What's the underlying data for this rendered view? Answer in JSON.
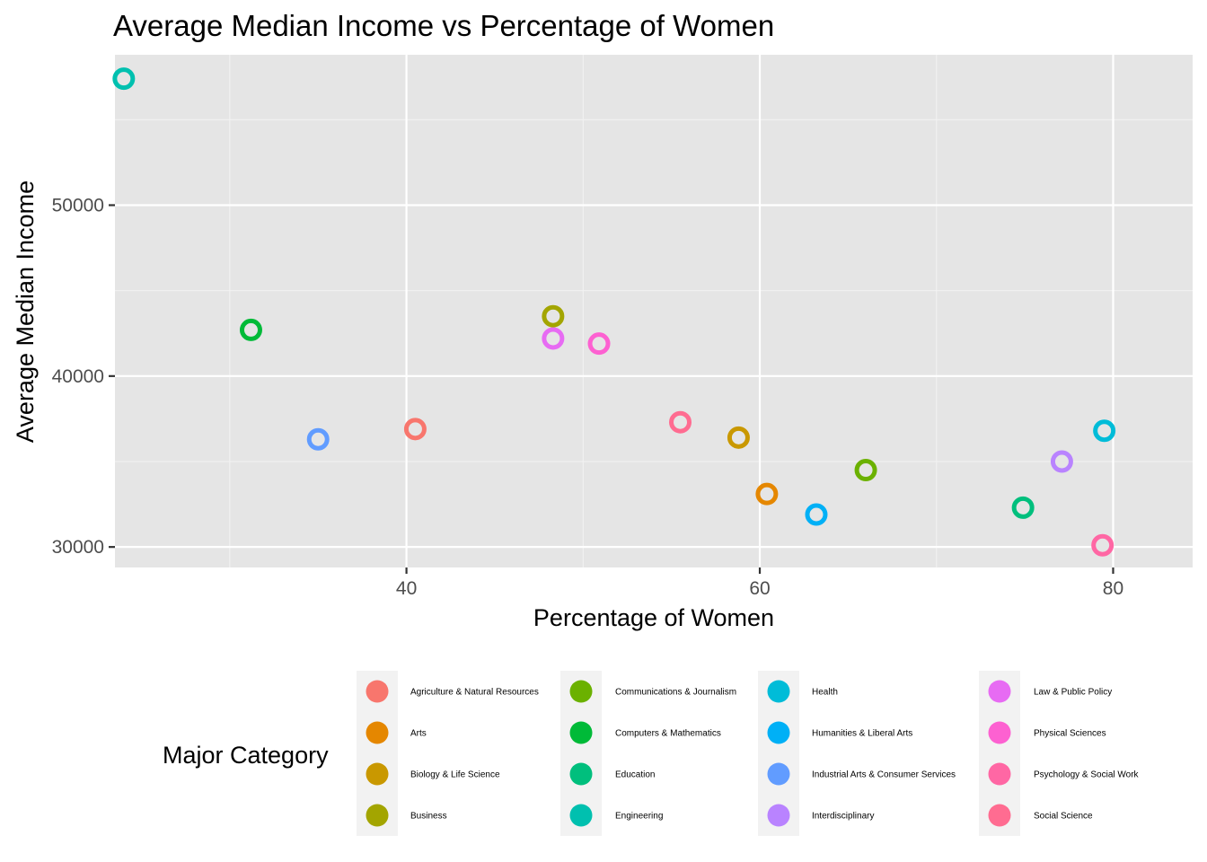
{
  "chart_data": {
    "type": "scatter",
    "title": "Average Median Income vs Percentage of Women",
    "xlabel": "Percentage of Women",
    "ylabel": "Average Median Income",
    "xlim": [
      23.5,
      84.5
    ],
    "ylim": [
      28800,
      58800
    ],
    "x_ticks": [
      {
        "value": 40,
        "label": "40"
      },
      {
        "value": 60,
        "label": "60"
      },
      {
        "value": 80,
        "label": "80"
      }
    ],
    "y_ticks": [
      {
        "value": 30000,
        "label": "30000"
      },
      {
        "value": 40000,
        "label": "40000"
      },
      {
        "value": 50000,
        "label": "50000"
      }
    ],
    "x_minor": [
      30,
      50,
      70
    ],
    "y_minor": [
      35000,
      45000,
      55000
    ],
    "grid": true,
    "background": "#E5E5E5",
    "legend": {
      "title": "Major Category",
      "position": "bottom"
    },
    "series": [
      {
        "name": "Agriculture & Natural Resources",
        "color": "#F8766D",
        "x": 40.5,
        "y": 36900
      },
      {
        "name": "Arts",
        "color": "#E58700",
        "x": 60.4,
        "y": 33100
      },
      {
        "name": "Biology & Life Science",
        "color": "#C99800",
        "x": 58.8,
        "y": 36400
      },
      {
        "name": "Business",
        "color": "#A3A500",
        "x": 48.3,
        "y": 43500
      },
      {
        "name": "Communications & Journalism",
        "color": "#6BB100",
        "x": 66.0,
        "y": 34500
      },
      {
        "name": "Computers & Mathematics",
        "color": "#00BA38",
        "x": 31.2,
        "y": 42700
      },
      {
        "name": "Education",
        "color": "#00BF7D",
        "x": 74.9,
        "y": 32300
      },
      {
        "name": "Engineering",
        "color": "#00C0AF",
        "x": 24.0,
        "y": 57400
      },
      {
        "name": "Health",
        "color": "#00BCD8",
        "x": 79.5,
        "y": 36800
      },
      {
        "name": "Humanities & Liberal Arts",
        "color": "#00B0F6",
        "x": 63.2,
        "y": 31900
      },
      {
        "name": "Industrial Arts & Consumer Services",
        "color": "#619CFF",
        "x": 35.0,
        "y": 36300
      },
      {
        "name": "Interdisciplinary",
        "color": "#B983FF",
        "x": 77.1,
        "y": 35000
      },
      {
        "name": "Law & Public Policy",
        "color": "#E76BF3",
        "x": 48.3,
        "y": 42200
      },
      {
        "name": "Physical Sciences",
        "color": "#FD61D1",
        "x": 50.9,
        "y": 41900
      },
      {
        "name": "Psychology & Social Work",
        "color": "#FF67A4",
        "x": 79.4,
        "y": 30100
      },
      {
        "name": "Social Science",
        "color": "#FF6C91",
        "x": 55.5,
        "y": 37300
      }
    ]
  }
}
